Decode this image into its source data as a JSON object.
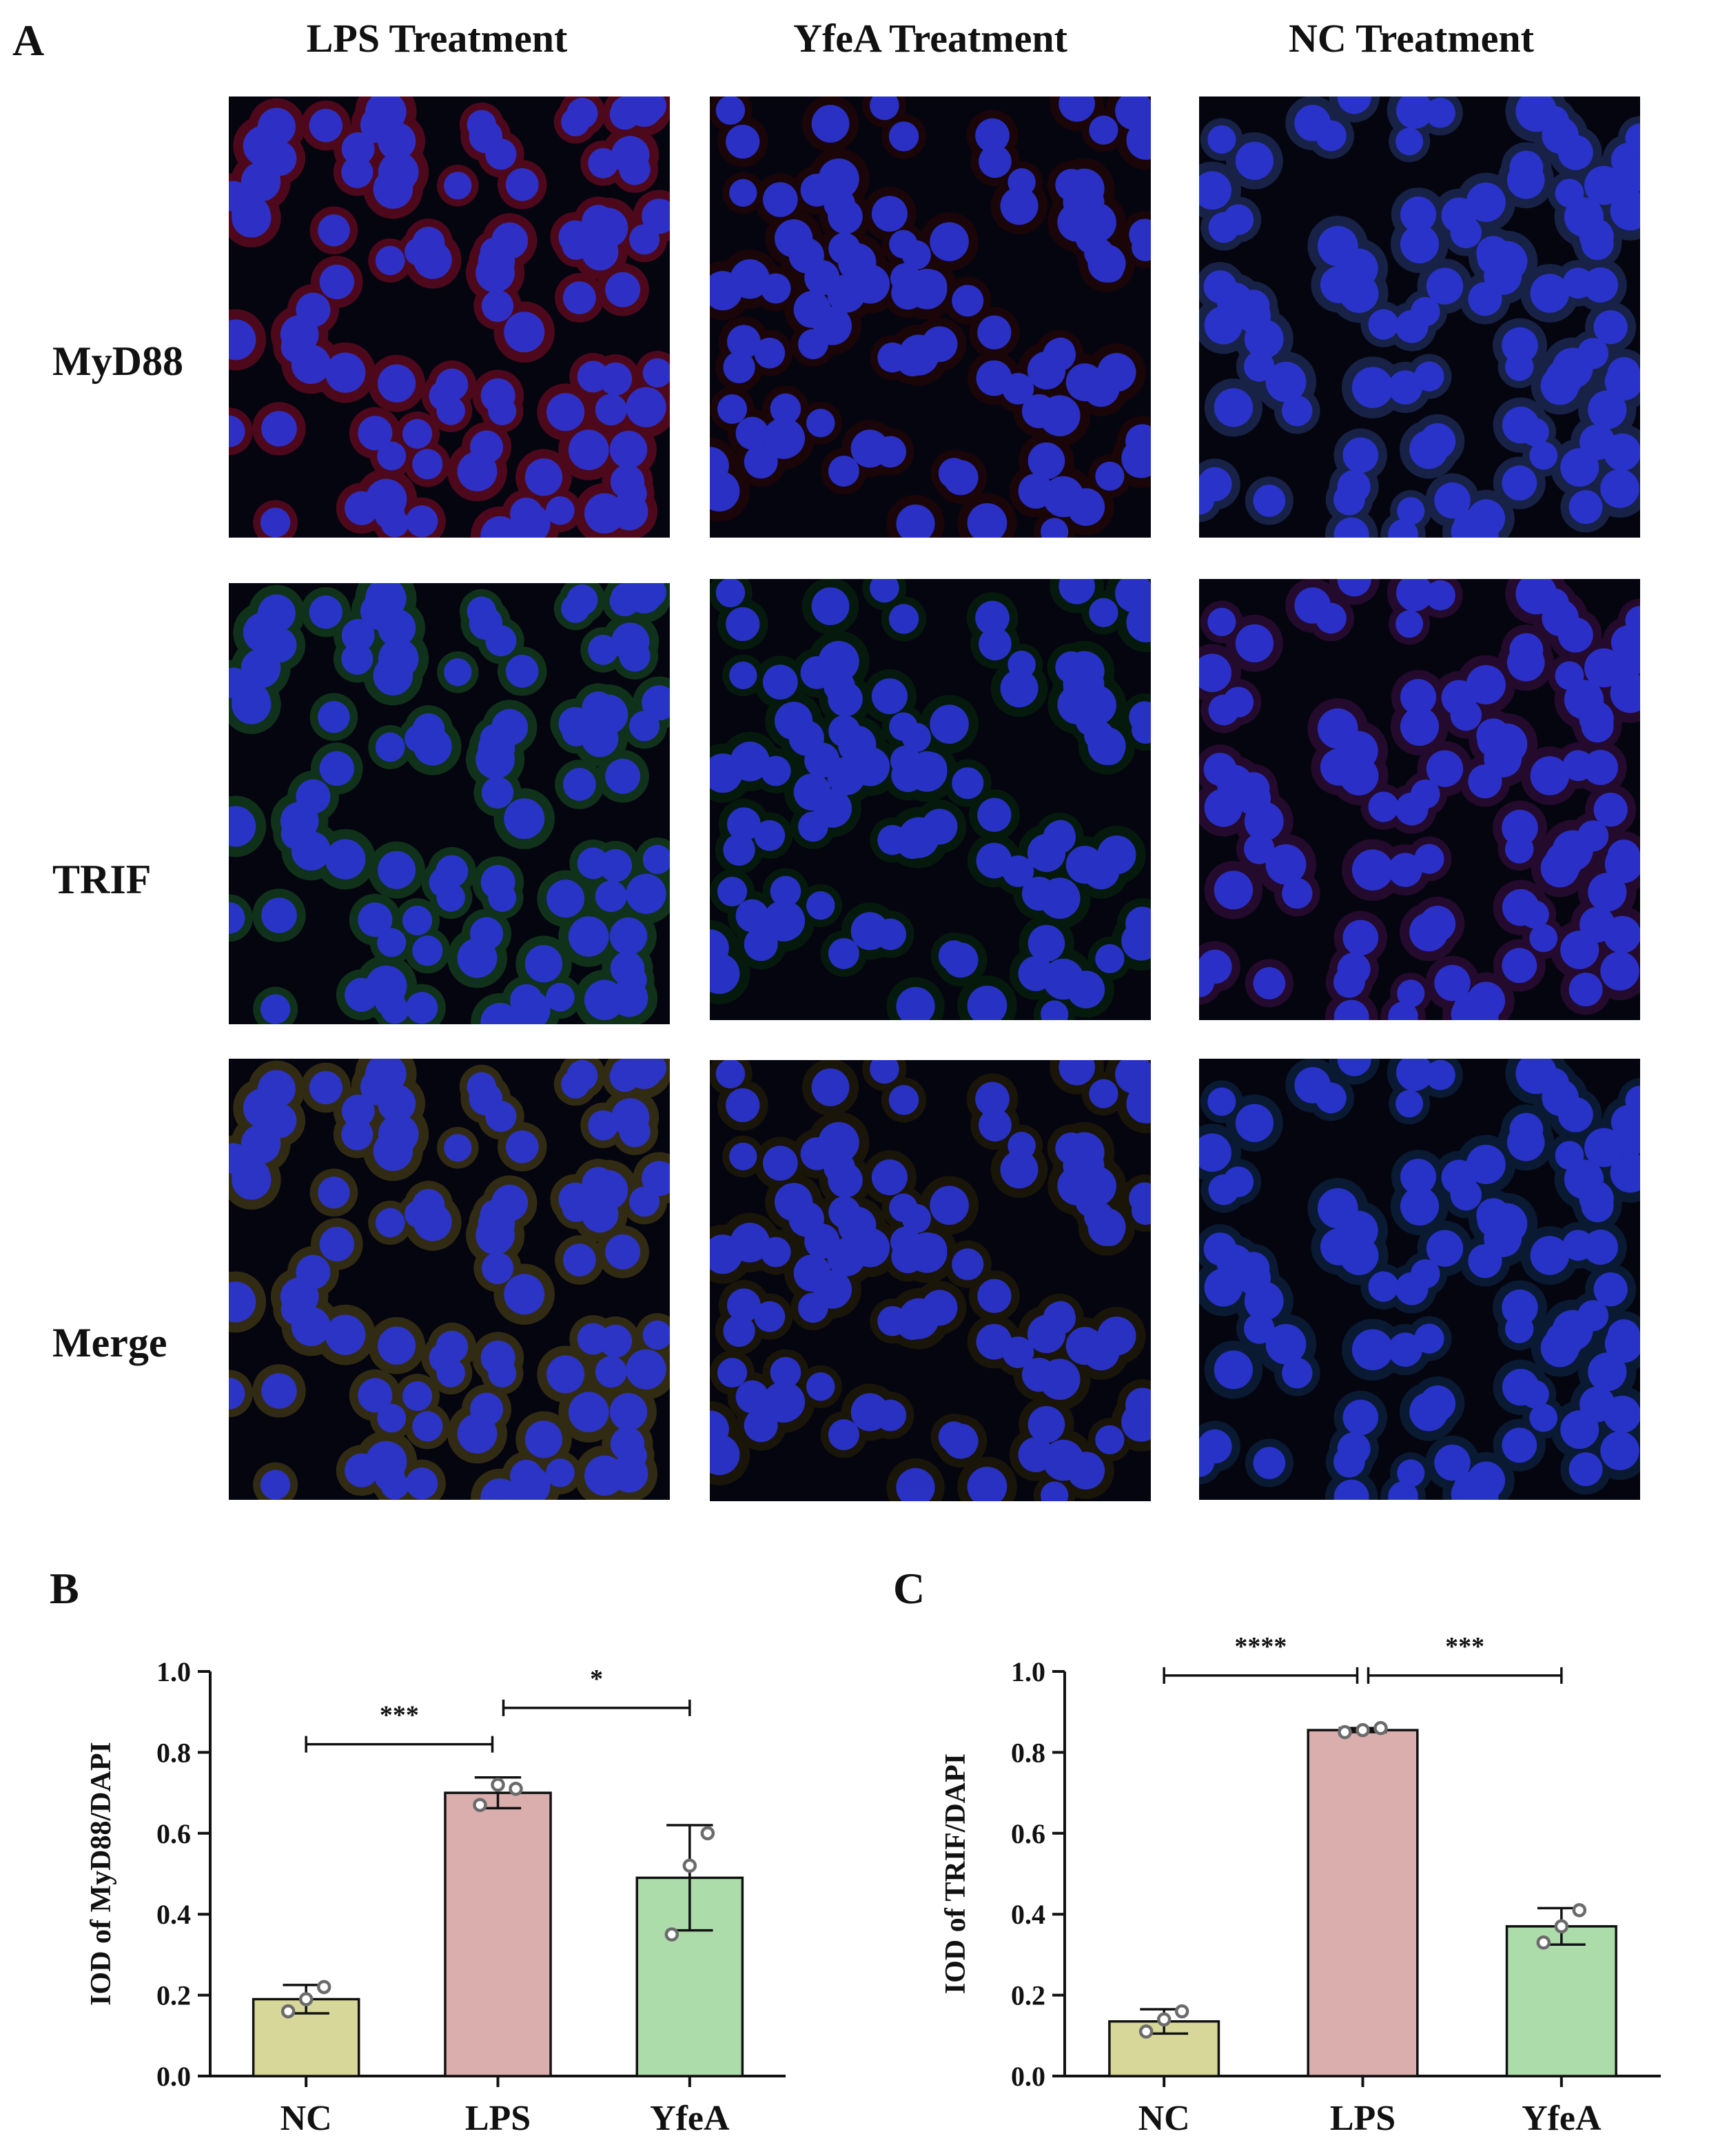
{
  "panel_labels": {
    "a": "A",
    "b": "B",
    "c": "C"
  },
  "column_titles": [
    "LPS Treatment",
    "YfeA Treatment",
    "NC Treatment"
  ],
  "row_labels": [
    "MyD88",
    "TRIF",
    "Merge"
  ],
  "micrographs": {
    "rows": [
      {
        "label": "MyD88",
        "tints": [
          "#5a0a1e",
          "#1e0508",
          "#1c2850"
        ]
      },
      {
        "label": "TRIF",
        "tints": [
          "#123a1c",
          "#061e0c",
          "#2a0c32"
        ]
      },
      {
        "label": "Merge",
        "tints": [
          "#3a3214",
          "#1e1808",
          "#0c1e3a"
        ]
      }
    ],
    "nucleus_color": "#2b35d8"
  },
  "colors": {
    "NC": "#d8d79a",
    "LPS": "#dbaeae",
    "YfeA": "#abdcaa",
    "axis": "#111111",
    "points": "#6b6b6b"
  },
  "chart_data": [
    {
      "type": "bar",
      "ylabel": "IOD of MyD88/DAPI",
      "ylim": [
        0,
        1.0
      ],
      "yticks": [
        "0.0",
        "0.2",
        "0.4",
        "0.6",
        "0.8",
        "1.0"
      ],
      "categories": [
        "NC",
        "LPS",
        "YfeA"
      ],
      "values": [
        0.19,
        0.7,
        0.49
      ],
      "errors": [
        0.035,
        0.038,
        0.13
      ],
      "points": [
        [
          0.16,
          0.19,
          0.22
        ],
        [
          0.67,
          0.72,
          0.71
        ],
        [
          0.35,
          0.52,
          0.6
        ]
      ],
      "significance": [
        {
          "from": "NC",
          "to": "LPS",
          "label": "***",
          "y": 0.82
        },
        {
          "from": "LPS",
          "to": "YfeA",
          "label": "*",
          "y": 0.91
        }
      ]
    },
    {
      "type": "bar",
      "ylabel": "IOD of TRIF/DAPI",
      "ylim": [
        0,
        1.0
      ],
      "yticks": [
        "0.0",
        "0.2",
        "0.4",
        "0.6",
        "0.8",
        "1.0"
      ],
      "categories": [
        "NC",
        "LPS",
        "YfeA"
      ],
      "values": [
        0.135,
        0.855,
        0.37
      ],
      "errors": [
        0.03,
        0.005,
        0.045
      ],
      "points": [
        [
          0.11,
          0.14,
          0.16
        ],
        [
          0.85,
          0.855,
          0.86
        ],
        [
          0.33,
          0.37,
          0.41
        ]
      ],
      "significance": [
        {
          "from": "NC",
          "to": "LPS",
          "label": "****",
          "y": 0.99
        },
        {
          "from": "LPS",
          "to": "YfeA",
          "label": "***",
          "y": 0.99
        }
      ]
    }
  ]
}
